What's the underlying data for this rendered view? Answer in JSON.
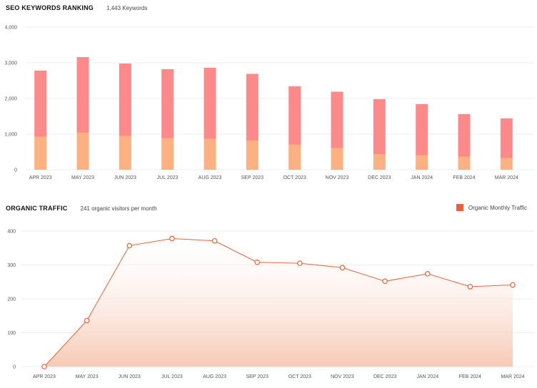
{
  "chart_data": [
    {
      "type": "bar",
      "title": "SEO KEYWORDS RANKING",
      "subtitle": "1,443 Keywords",
      "categories": [
        "APR 2023",
        "MAY 2023",
        "JUN 2023",
        "JUL 2023",
        "AUG 2023",
        "SEP 2023",
        "OCT 2023",
        "NOV 2023",
        "DEC 2023",
        "JAN 2024",
        "FEB 2024",
        "MAR 2024"
      ],
      "stacked": true,
      "series": [
        {
          "values": [
            930,
            1040,
            950,
            890,
            870,
            820,
            710,
            610,
            440,
            410,
            370,
            330
          ],
          "color": "#fcb183"
        },
        {
          "values": [
            1850,
            2120,
            2030,
            1930,
            1990,
            1870,
            1630,
            1580,
            1540,
            1430,
            1190,
            1110
          ],
          "color": "#fd8a8a"
        }
      ],
      "totals_approx": [
        2780,
        3160,
        2980,
        2820,
        2860,
        2690,
        2340,
        2190,
        1980,
        1840,
        1560,
        1440
      ],
      "ylim": [
        0,
        4000
      ],
      "yticks": [
        "0",
        "1,000",
        "2,000",
        "3,000",
        "4,000"
      ],
      "ytick_values": [
        0,
        1000,
        2000,
        3000,
        4000
      ],
      "grid": true
    },
    {
      "type": "area",
      "title": "ORGANIC TRAFFIC",
      "subtitle": "241 organic visitors per month",
      "categories": [
        "APR 2023",
        "MAY 2023",
        "JUN 2023",
        "JUL 2023",
        "AUG 2023",
        "SEP 2023",
        "OCT 2023",
        "NOV 2023",
        "DEC 2023",
        "JAN 2024",
        "FEB 2024",
        "MAR 2024"
      ],
      "series": [
        {
          "name": "Organic Monthly Traffic",
          "values": [
            0,
            136,
            357,
            378,
            371,
            308,
            305,
            292,
            252,
            274,
            236,
            241
          ],
          "color": "#e8613a"
        }
      ],
      "legend": "top-right",
      "ylim": [
        0,
        400
      ],
      "yticks": [
        "0",
        "100",
        "200",
        "300",
        "400"
      ],
      "ytick_values": [
        0,
        100,
        200,
        300,
        400
      ],
      "grid": true
    }
  ]
}
